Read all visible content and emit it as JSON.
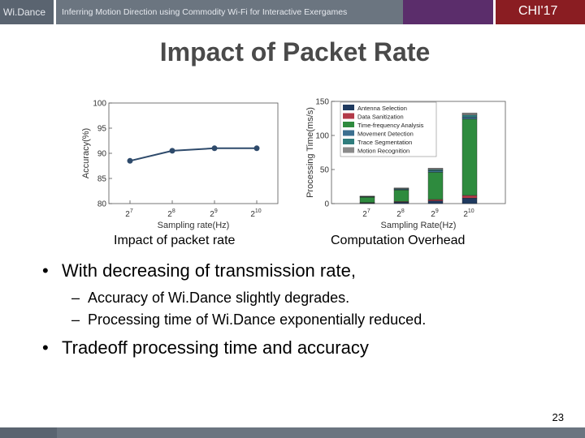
{
  "header": {
    "brand": "Wi.Dance",
    "subtitle": "Inferring Motion Direction using Commodity Wi-Fi for Interactive Exergames",
    "venue": "CHI'17"
  },
  "slide": {
    "title": "Impact of Packet Rate",
    "caption_left": "Impact of packet rate",
    "caption_right": "Computation Overhead",
    "bullet1": "With decreasing of transmission rate,",
    "sub1": "Accuracy  of Wi.Dance slightly degrades.",
    "sub2": "Processing time  of Wi.Dance exponentially reduced.",
    "bullet2": "Tradeoff  processing  time and accuracy",
    "bullet_mark": "•",
    "dash_mark": "–",
    "page_number": "23"
  },
  "colors": {
    "line": "#2e4a6b",
    "header_purple": "#5b2d6b",
    "header_red": "#8a1d22"
  },
  "chart_data": [
    {
      "type": "line",
      "x": [
        "2^7",
        "2^8",
        "2^9",
        "2^10"
      ],
      "xticks": [
        "7",
        "8",
        "9",
        "10"
      ],
      "y": [
        88.5,
        90.5,
        91.0,
        91.0
      ],
      "xlabel": "Sampling rate(Hz)",
      "ylabel": "Accuracy(%)",
      "ylim": [
        80,
        100
      ],
      "yticks": [
        "80",
        "85",
        "90",
        "95",
        "100"
      ],
      "grid": false
    },
    {
      "type": "bar",
      "stacked": true,
      "categories": [
        "2^7",
        "2^8",
        "2^9",
        "2^10"
      ],
      "xticks": [
        "7",
        "8",
        "9",
        "10"
      ],
      "xlabel": "Sampling Rate(Hz)",
      "ylabel": "Processing Time(ms/s)",
      "ylim": [
        0,
        150
      ],
      "yticks": [
        "0",
        "50",
        "100",
        "150"
      ],
      "legend_position": "top-left",
      "series": [
        {
          "name": "Antenna Selection",
          "color": "#1f3a5f",
          "values": [
            1,
            2,
            4,
            8
          ]
        },
        {
          "name": "Data Sanitization",
          "color": "#b23a48",
          "values": [
            0.5,
            1,
            2,
            4
          ]
        },
        {
          "name": "Time-frequency Analysis",
          "color": "#2e8b3e",
          "values": [
            8,
            17,
            40,
            112
          ]
        },
        {
          "name": "Movement Detection",
          "color": "#3b6f8f",
          "values": [
            0.5,
            1,
            2,
            3
          ]
        },
        {
          "name": "Trace Segmentation",
          "color": "#2f7d7d",
          "values": [
            0.5,
            1,
            2,
            3
          ]
        },
        {
          "name": "Motion Recognition",
          "color": "#8a8a8a",
          "values": [
            0.5,
            1,
            2,
            3
          ]
        }
      ]
    }
  ]
}
